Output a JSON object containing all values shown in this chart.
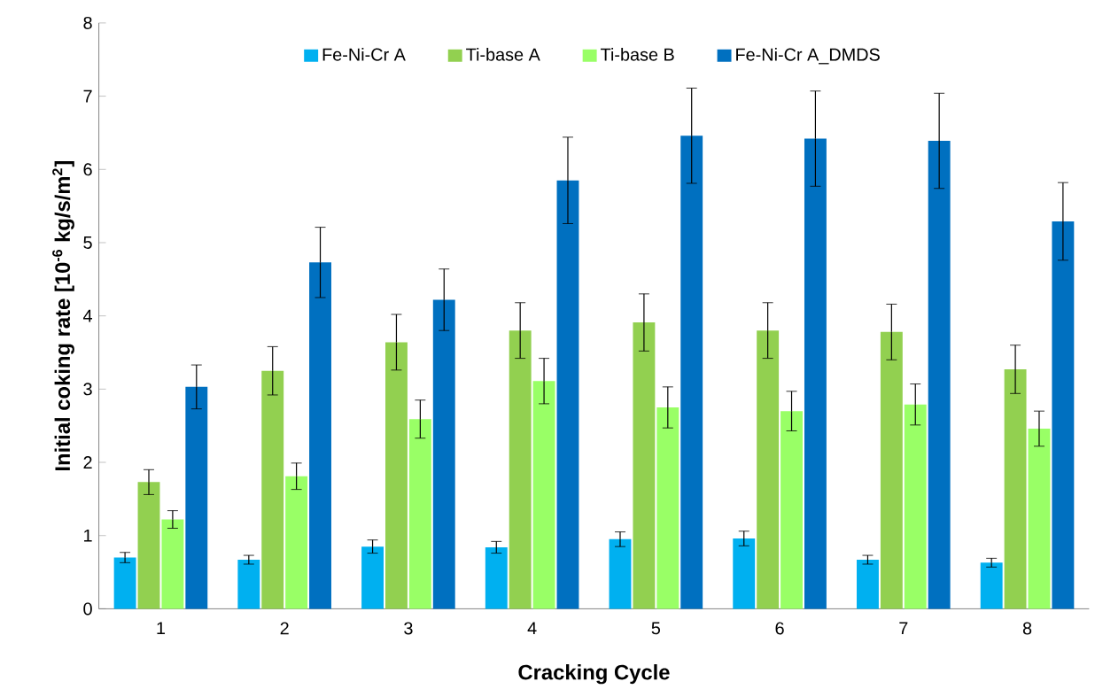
{
  "chart_data": {
    "type": "bar",
    "xlabel": "Cracking Cycle",
    "ylabel": "Initial coking rate [10$^{-6}$ kg/s/m$^{2}$]",
    "categories": [
      "1",
      "2",
      "3",
      "4",
      "5",
      "6",
      "7",
      "8"
    ],
    "series": [
      {
        "name": "Fe-Ni-Cr A",
        "color": "#00b0f0",
        "values": [
          0.7,
          0.67,
          0.85,
          0.84,
          0.95,
          0.96,
          0.67,
          0.63
        ],
        "errors": [
          0.07,
          0.06,
          0.09,
          0.08,
          0.1,
          0.1,
          0.06,
          0.06
        ]
      },
      {
        "name": "Ti-base A",
        "color": "#92d050",
        "values": [
          1.73,
          3.25,
          3.64,
          3.8,
          3.91,
          3.8,
          3.78,
          3.27
        ],
        "errors": [
          0.17,
          0.33,
          0.38,
          0.38,
          0.39,
          0.38,
          0.38,
          0.33
        ]
      },
      {
        "name": "Ti-base B",
        "color": "#99ff66",
        "values": [
          1.22,
          1.81,
          2.59,
          3.11,
          2.75,
          2.7,
          2.79,
          2.46
        ],
        "errors": [
          0.12,
          0.18,
          0.26,
          0.31,
          0.28,
          0.27,
          0.28,
          0.24
        ]
      },
      {
        "name": "Fe-Ni-Cr A_DMDS",
        "color": "#0070c0",
        "values": [
          3.03,
          4.73,
          4.22,
          5.85,
          6.46,
          6.42,
          6.39,
          5.29
        ],
        "errors": [
          0.3,
          0.48,
          0.42,
          0.59,
          0.65,
          0.65,
          0.65,
          0.53
        ]
      }
    ],
    "ylim": [
      0,
      8
    ],
    "yticks": [
      0,
      1,
      2,
      3,
      4,
      5,
      6,
      7,
      8
    ],
    "grid": false,
    "legend": "top"
  }
}
